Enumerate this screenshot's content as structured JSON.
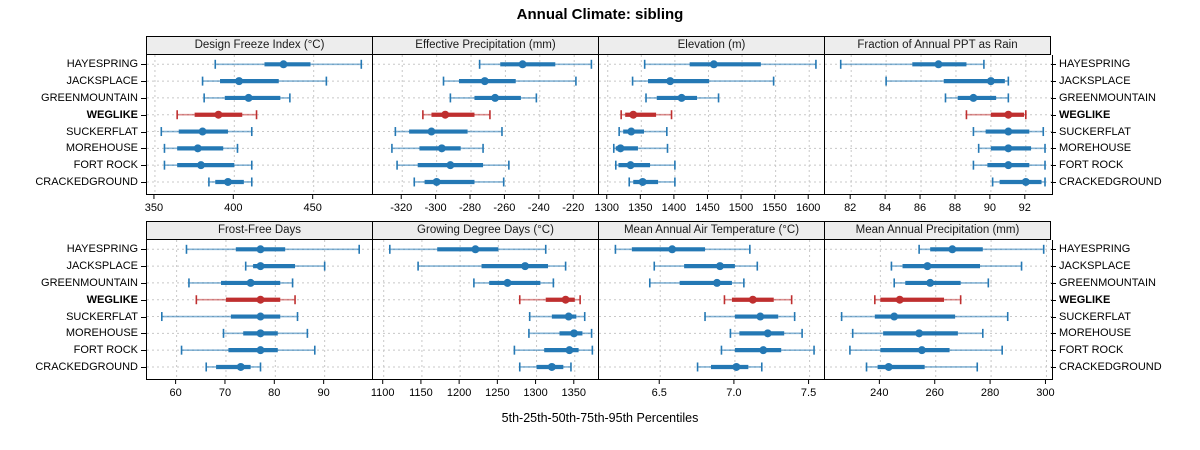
{
  "title": "Annual Climate: sibling",
  "caption": "5th-25th-50th-75th-95th Percentiles",
  "colors": {
    "blue": "#2478b4",
    "red": "#bf2f2f",
    "strip_bg": "#ededed",
    "grid": "#c8c8c8",
    "border": "#000000"
  },
  "chart_data": {
    "type": "dot-interval-lattice",
    "percentiles": [
      5,
      25,
      50,
      75,
      95
    ],
    "legend": "5th-25th-50th-75th-95th Percentiles",
    "locations": [
      "HAYESPRING",
      "JACKSPLACE",
      "GREENMOUNTAIN",
      "WEGLIKE",
      "SUCKERFLAT",
      "MOREHOUSE",
      "FORT ROCK",
      "CRACKEDGROUND"
    ],
    "highlight": "WEGLIKE",
    "highlight_index": 3,
    "grid": "dashed",
    "panels": [
      {
        "title": "Design Freeze Index (°C)",
        "xlim": [
          345,
          488
        ],
        "ticks": [
          350,
          400,
          450
        ],
        "tick_labels": [
          "350",
          "400",
          "450"
        ],
        "values": [
          [
            388,
            419,
            431,
            448,
            480
          ],
          [
            380,
            391,
            403,
            428,
            458
          ],
          [
            381,
            394,
            409,
            429,
            435
          ],
          [
            364,
            375,
            390,
            405,
            414
          ],
          [
            354,
            365,
            380,
            396,
            411
          ],
          [
            356,
            364,
            377,
            393,
            402
          ],
          [
            356,
            364,
            379,
            400,
            411
          ],
          [
            384,
            388,
            396,
            406,
            411
          ]
        ]
      },
      {
        "title": "Effective Precipitation (mm)",
        "xlim": [
          -337,
          -205
        ],
        "ticks": [
          -320,
          -300,
          -280,
          -260,
          -240,
          -220
        ],
        "tick_labels": [
          "-320",
          "-300",
          "-280",
          "-260",
          "-240",
          "-220"
        ],
        "values": [
          [
            -275,
            -263,
            -250,
            -231,
            -210
          ],
          [
            -296,
            -287,
            -272,
            -254,
            -219
          ],
          [
            -292,
            -278,
            -266,
            -251,
            -242
          ],
          [
            -308,
            -303,
            -295,
            -278,
            -269
          ],
          [
            -324,
            -316,
            -303,
            -282,
            -262
          ],
          [
            -326,
            -310,
            -297,
            -286,
            -273
          ],
          [
            -323,
            -311,
            -292,
            -273,
            -258
          ],
          [
            -313,
            -307,
            -300,
            -278,
            -261
          ]
        ]
      },
      {
        "title": "Elevation (m)",
        "xlim": [
          1287,
          1625
        ],
        "ticks": [
          1300,
          1350,
          1400,
          1450,
          1500,
          1550,
          1600
        ],
        "tick_labels": [
          "1300",
          "1350",
          "1400",
          "1450",
          "1500",
          "1550",
          "1600"
        ],
        "values": [
          [
            1355,
            1422,
            1458,
            1528,
            1610
          ],
          [
            1337,
            1360,
            1393,
            1451,
            1547
          ],
          [
            1357,
            1373,
            1410,
            1433,
            1465
          ],
          [
            1320,
            1326,
            1338,
            1372,
            1395
          ],
          [
            1317,
            1323,
            1335,
            1354,
            1388
          ],
          [
            1309,
            1312,
            1319,
            1345,
            1389
          ],
          [
            1312,
            1316,
            1334,
            1363,
            1400
          ],
          [
            1332,
            1338,
            1352,
            1375,
            1400
          ]
        ]
      },
      {
        "title": "Fraction of Annual PPT as Rain",
        "xlim": [
          80.5,
          93.5
        ],
        "ticks": [
          82,
          84,
          86,
          88,
          90,
          92
        ],
        "tick_labels": [
          "82",
          "84",
          "86",
          "88",
          "90",
          "92"
        ],
        "values": [
          [
            81.4,
            85.5,
            87.0,
            88.6,
            89.6
          ],
          [
            84.0,
            87.3,
            90.0,
            90.8,
            91.0
          ],
          [
            87.4,
            88.1,
            89.0,
            90.3,
            91.0
          ],
          [
            88.6,
            90.0,
            91.0,
            91.9,
            92.0
          ],
          [
            89.0,
            89.7,
            91.0,
            92.2,
            93.0
          ],
          [
            89.3,
            90.0,
            91.0,
            92.3,
            93.1
          ],
          [
            89.0,
            89.8,
            91.0,
            92.2,
            93.1
          ],
          [
            90.1,
            90.5,
            92.0,
            92.9,
            93.1
          ]
        ]
      },
      {
        "title": "Frost-Free Days",
        "xlim": [
          54,
          100
        ],
        "ticks": [
          60,
          70,
          80,
          90
        ],
        "tick_labels": [
          "60",
          "70",
          "80",
          "90"
        ],
        "values": [
          [
            62,
            72,
            77,
            82,
            97
          ],
          [
            74,
            75.5,
            77,
            84,
            90
          ],
          [
            62.5,
            69,
            75,
            81,
            83.5
          ],
          [
            64,
            70,
            77,
            81,
            84
          ],
          [
            57,
            71,
            77,
            81,
            84.5
          ],
          [
            69.5,
            73.5,
            77,
            80.5,
            86.5
          ],
          [
            61,
            70.5,
            77,
            80.5,
            88
          ],
          [
            66,
            68,
            73,
            75,
            77
          ]
        ]
      },
      {
        "title": "Growing Degree Days (°C)",
        "xlim": [
          1086,
          1383
        ],
        "ticks": [
          1100,
          1150,
          1200,
          1250,
          1300,
          1350
        ],
        "tick_labels": [
          "1100",
          "1150",
          "1200",
          "1250",
          "1300",
          "1350"
        ],
        "values": [
          [
            1108,
            1170,
            1220,
            1250,
            1312
          ],
          [
            1145,
            1228,
            1285,
            1315,
            1338
          ],
          [
            1218,
            1238,
            1262,
            1305,
            1322
          ],
          [
            1278,
            1312,
            1338,
            1350,
            1357
          ],
          [
            1291,
            1320,
            1342,
            1352,
            1363
          ],
          [
            1290,
            1330,
            1349,
            1360,
            1372
          ],
          [
            1271,
            1310,
            1343,
            1355,
            1373
          ],
          [
            1278,
            1300,
            1320,
            1335,
            1345
          ]
        ]
      },
      {
        "title": "Mean Annual Air Temperature (°C)",
        "xlim": [
          6.09,
          7.61
        ],
        "ticks": [
          6.5,
          7.0,
          7.5
        ],
        "tick_labels": [
          "6.5",
          "7.0",
          "7.5"
        ],
        "values": [
          [
            6.2,
            6.31,
            6.58,
            6.8,
            7.1
          ],
          [
            6.46,
            6.66,
            6.9,
            7.0,
            7.15
          ],
          [
            6.43,
            6.63,
            6.88,
            6.98,
            7.06
          ],
          [
            6.93,
            6.98,
            7.12,
            7.26,
            7.38
          ],
          [
            6.8,
            7.0,
            7.17,
            7.29,
            7.4
          ],
          [
            6.97,
            7.03,
            7.22,
            7.33,
            7.45
          ],
          [
            6.91,
            7.0,
            7.19,
            7.31,
            7.53
          ],
          [
            6.75,
            6.84,
            7.01,
            7.09,
            7.18
          ]
        ]
      },
      {
        "title": "Mean Annual Precipitation (mm)",
        "xlim": [
          220,
          302
        ],
        "ticks": [
          240,
          260,
          280,
          300
        ],
        "tick_labels": [
          "240",
          "260",
          "280",
          "300"
        ],
        "values": [
          [
            254,
            258,
            266,
            277,
            299
          ],
          [
            244,
            248,
            257,
            276,
            291
          ],
          [
            245,
            249,
            258,
            269,
            279
          ],
          [
            238,
            240,
            247,
            263,
            269
          ],
          [
            226,
            238,
            245,
            267,
            286
          ],
          [
            230,
            241,
            254,
            268,
            277
          ],
          [
            229,
            240,
            255,
            265,
            284
          ],
          [
            235,
            239,
            243,
            256,
            275
          ]
        ]
      }
    ]
  }
}
